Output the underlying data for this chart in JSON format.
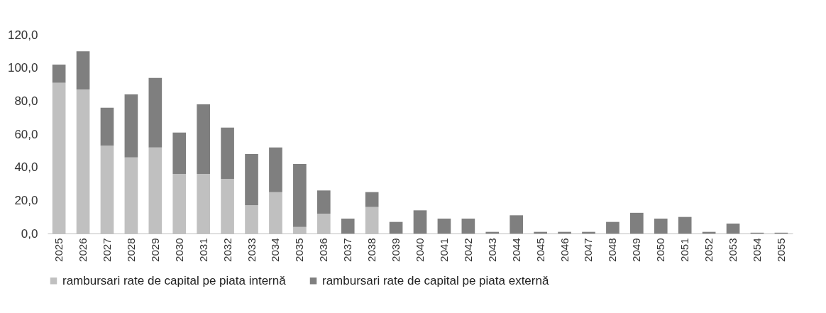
{
  "chart_data": {
    "type": "bar",
    "stacked": true,
    "categories": [
      "2025",
      "2026",
      "2027",
      "2028",
      "2029",
      "2030",
      "2031",
      "2032",
      "2033",
      "2034",
      "2035",
      "2036",
      "2037",
      "2038",
      "2039",
      "2040",
      "2041",
      "2042",
      "2043",
      "2044",
      "2045",
      "2046",
      "2047",
      "2048",
      "2049",
      "2050",
      "2051",
      "2052",
      "2053",
      "2054",
      "2055"
    ],
    "series": [
      {
        "name": "rambursari rate de capital pe piata internă",
        "color": "#c0c0c0",
        "values": [
          91,
          87,
          53,
          46,
          52,
          36,
          36,
          33,
          17,
          25,
          4,
          12,
          0,
          16,
          0,
          0,
          0,
          0,
          0,
          0,
          0,
          0,
          0,
          0,
          0,
          0,
          0,
          0,
          0,
          0,
          0
        ]
      },
      {
        "name": "rambursari rate de capital pe piata externă",
        "color": "#7f7f7f",
        "values": [
          11,
          23,
          23,
          38,
          42,
          25,
          42,
          31,
          31,
          27,
          38,
          14,
          9,
          9,
          7,
          14,
          9,
          9,
          1,
          11,
          1,
          1,
          1,
          7,
          12.5,
          9,
          10,
          1,
          6,
          0.5,
          0.5
        ]
      }
    ],
    "ylim": [
      0,
      120
    ],
    "yticks": [
      {
        "value": 0,
        "label": "0,0"
      },
      {
        "value": 20,
        "label": "20,0"
      },
      {
        "value": 40,
        "label": "40,0"
      },
      {
        "value": 60,
        "label": "60,0"
      },
      {
        "value": 80,
        "label": "80,0"
      },
      {
        "value": 100,
        "label": "100,0"
      },
      {
        "value": 120,
        "label": "120,0"
      }
    ],
    "grid": false,
    "legend": "bottom"
  }
}
